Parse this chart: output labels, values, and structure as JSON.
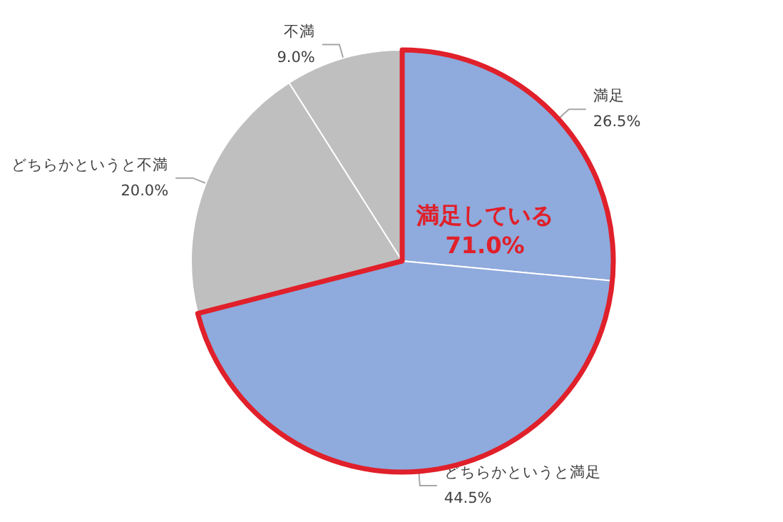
{
  "chart_data": {
    "type": "pie",
    "categories": [
      "満足",
      "どちらかというと満足",
      "どちらかというと不満",
      "不満"
    ],
    "values": [
      26.5,
      44.5,
      20.0,
      9.0
    ],
    "value_labels": [
      "26.5%",
      "44.5%",
      "20.0%",
      "9.0%"
    ],
    "colors": [
      "#8faadc",
      "#8faadc",
      "#bfbfbf",
      "#bfbfbf"
    ],
    "annotations": [
      "満足している",
      "71.0%"
    ],
    "legend": false
  }
}
